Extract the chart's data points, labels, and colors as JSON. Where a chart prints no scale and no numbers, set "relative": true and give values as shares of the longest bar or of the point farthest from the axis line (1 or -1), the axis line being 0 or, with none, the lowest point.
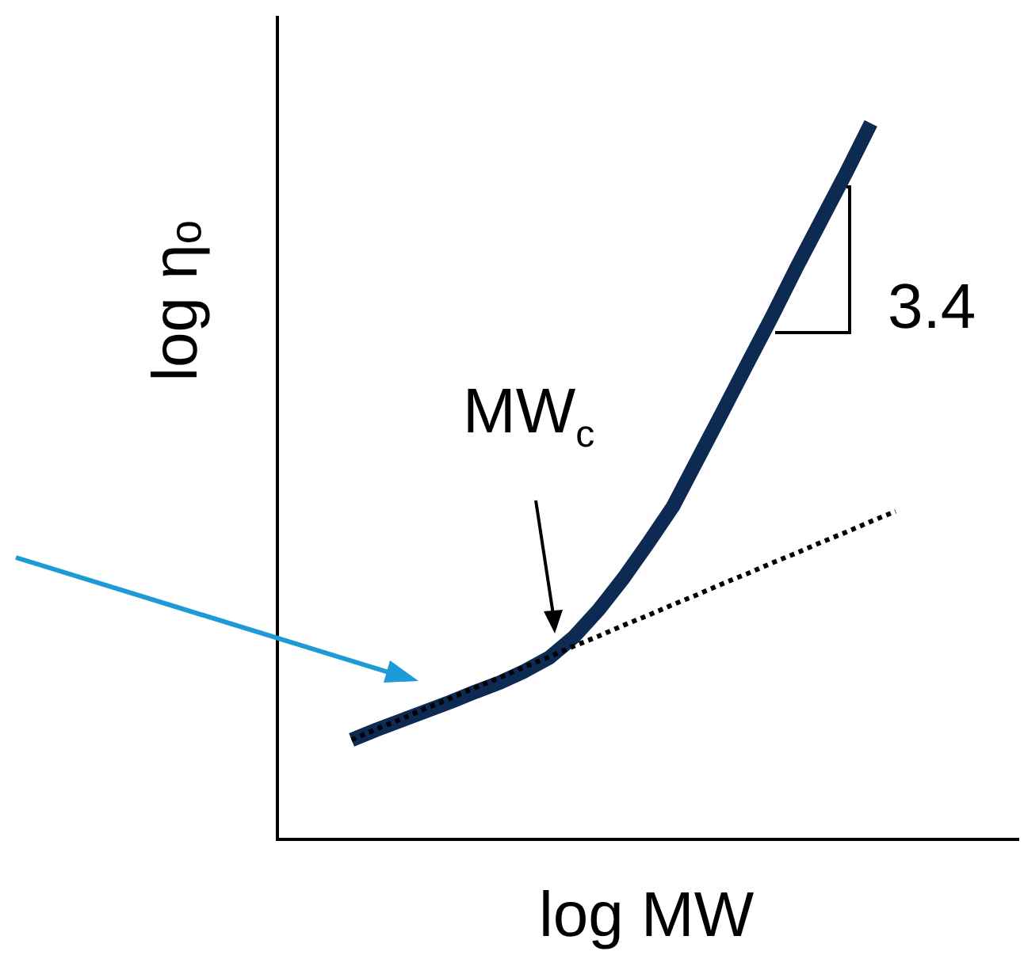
{
  "chart_data": {
    "type": "line",
    "relative": true,
    "xlabel": "log MW",
    "ylabel": "log ηₒ",
    "categories": [
      null,
      null,
      null,
      null,
      null,
      null,
      null,
      null,
      null,
      null,
      null,
      null,
      null,
      null,
      null,
      null,
      null,
      null,
      null,
      null,
      null,
      null,
      null,
      null,
      null,
      null,
      null,
      null,
      null,
      null,
      null
    ],
    "series": [
      {
        "color": "#0d2a52",
        "line_style": "solid",
        "values": [
          null,
          null,
          null,
          0.139,
          0.153,
          0.166,
          0.179,
          0.192,
          0.206,
          0.219,
          0.235,
          0.254,
          0.283,
          0.321,
          0.365,
          0.414,
          0.465,
          0.531,
          0.597,
          0.664,
          0.73,
          0.799,
          0.865,
          0.931,
          1,
          null,
          null,
          null,
          null,
          null,
          null
        ]
      },
      {
        "color": "#000000",
        "line_style": "dotted",
        "values": [
          null,
          null,
          null,
          0.139,
          0.154,
          0.168,
          0.183,
          0.197,
          0.212,
          0.226,
          0.241,
          0.255,
          0.27,
          0.284,
          0.299,
          0.313,
          0.328,
          0.342,
          0.357,
          0.371,
          0.386,
          0.4,
          0.415,
          0.429,
          0.444,
          0.458,
          null,
          null,
          null,
          null,
          null
        ]
      }
    ],
    "annotations": [
      "MW$_{c}$",
      "3.4"
    ],
    "legend": false
  }
}
